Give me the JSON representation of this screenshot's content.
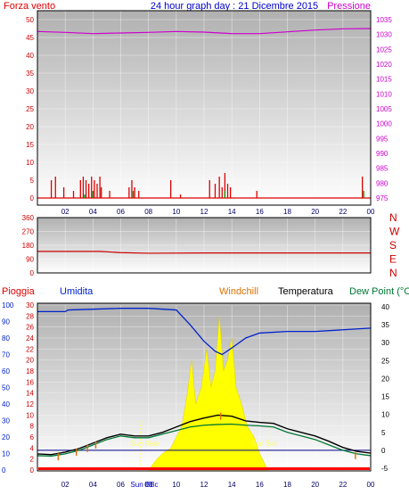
{
  "header": {
    "left": "Forza vento",
    "center": "24 hour graph day : 21 Dicembre 2015",
    "right": "Pressione"
  },
  "panel3_header": {
    "pioggia": "Pioggia",
    "umidita": "Umidita",
    "windchill": "Windchill",
    "temperatura": "Temperatura",
    "dewpoint": "Dew Point (°C"
  },
  "annotations": {
    "sun_rise": "Sun Rise",
    "sun_set": "Sun Set",
    "sun_label": "Sun BBc"
  },
  "colors": {
    "wind": "#dd0000",
    "pressure": "#cc00cc",
    "direction": "#cc0000",
    "humidity": "#0022cc",
    "temperature": "#000000",
    "dewpoint": "#007733",
    "windchill": "#e07000",
    "sun": "#ffff00",
    "rain": "#ff0000",
    "title": "#0000cc"
  },
  "chart_data": [
    {
      "type": "bar",
      "id": "wind_pressure",
      "x_ticks": [
        "02",
        "04",
        "06",
        "08",
        "10",
        "12",
        "14",
        "16",
        "18",
        "20",
        "22",
        "00"
      ],
      "y_left_ticks": [
        0,
        5,
        10,
        15,
        20,
        25,
        30,
        35,
        40,
        45,
        50
      ],
      "ylim_left": [
        0,
        50
      ],
      "y_right_ticks": [
        975,
        980,
        985,
        990,
        995,
        1000,
        1005,
        1010,
        1015,
        1020,
        1025,
        1030,
        1035
      ],
      "ylim_right": [
        975,
        1035
      ],
      "wind_gusts": [
        {
          "h": 1.0,
          "v": 5
        },
        {
          "h": 1.3,
          "v": 6
        },
        {
          "h": 1.9,
          "v": 3
        },
        {
          "h": 2.6,
          "v": 2
        },
        {
          "h": 3.1,
          "v": 5
        },
        {
          "h": 3.3,
          "v": 6
        },
        {
          "h": 3.5,
          "v": 5
        },
        {
          "h": 3.7,
          "v": 4
        },
        {
          "h": 3.9,
          "v": 6
        },
        {
          "h": 4.1,
          "v": 5
        },
        {
          "h": 4.3,
          "v": 4
        },
        {
          "h": 4.5,
          "v": 6
        },
        {
          "h": 4.6,
          "v": 3
        },
        {
          "h": 5.2,
          "v": 2
        },
        {
          "h": 6.6,
          "v": 3
        },
        {
          "h": 6.8,
          "v": 5
        },
        {
          "h": 7.0,
          "v": 3
        },
        {
          "h": 7.3,
          "v": 2
        },
        {
          "h": 9.6,
          "v": 5
        },
        {
          "h": 10.3,
          "v": 1
        },
        {
          "h": 12.4,
          "v": 5
        },
        {
          "h": 12.8,
          "v": 4
        },
        {
          "h": 13.1,
          "v": 6
        },
        {
          "h": 13.3,
          "v": 3
        },
        {
          "h": 13.5,
          "v": 7
        },
        {
          "h": 13.7,
          "v": 4
        },
        {
          "h": 13.9,
          "v": 3
        },
        {
          "h": 15.8,
          "v": 2
        },
        {
          "h": 23.4,
          "v": 6
        }
      ],
      "wind_avg": [
        {
          "h": 3.4,
          "v": 1
        },
        {
          "h": 4.0,
          "v": 2
        },
        {
          "h": 6.9,
          "v": 2
        },
        {
          "h": 13.5,
          "v": 2
        },
        {
          "h": 23.5,
          "v": 2
        }
      ],
      "pressure": [
        {
          "h": 0,
          "v": 1031
        },
        {
          "h": 2,
          "v": 1030.7
        },
        {
          "h": 4,
          "v": 1030.3
        },
        {
          "h": 6,
          "v": 1030.5
        },
        {
          "h": 8,
          "v": 1030.7
        },
        {
          "h": 10,
          "v": 1031
        },
        {
          "h": 12,
          "v": 1030.8
        },
        {
          "h": 14,
          "v": 1030.3
        },
        {
          "h": 16,
          "v": 1030.3
        },
        {
          "h": 18,
          "v": 1030.9
        },
        {
          "h": 20,
          "v": 1031.5
        },
        {
          "h": 22,
          "v": 1031.9
        },
        {
          "h": 24,
          "v": 1032
        }
      ]
    },
    {
      "type": "line",
      "id": "wind_direction",
      "y_ticks": [
        0,
        90,
        180,
        270,
        360
      ],
      "ylim": [
        0,
        360
      ],
      "compass": [
        "N",
        "W",
        "S",
        "E",
        "N"
      ],
      "direction": [
        {
          "h": 0,
          "v": 140
        },
        {
          "h": 4.5,
          "v": 140
        },
        {
          "h": 6,
          "v": 132
        },
        {
          "h": 8,
          "v": 128
        },
        {
          "h": 12,
          "v": 130
        },
        {
          "h": 16,
          "v": 130
        },
        {
          "h": 24,
          "v": 130
        }
      ]
    },
    {
      "type": "line",
      "id": "temp_humidity",
      "x_ticks": [
        "02",
        "04",
        "06",
        "08",
        "10",
        "12",
        "14",
        "16",
        "18",
        "20",
        "22",
        "00"
      ],
      "y_hum_ticks": [
        0,
        10,
        20,
        30,
        40,
        50,
        60,
        70,
        80,
        90,
        100
      ],
      "ylim_hum": [
        0,
        100
      ],
      "y_rain_ticks": [
        0,
        2,
        4,
        6,
        8,
        10,
        12,
        14,
        16,
        18,
        20,
        22,
        24,
        26,
        28,
        30
      ],
      "ylim_rain": [
        0,
        30
      ],
      "y_temp_ticks": [
        -5,
        0,
        5,
        10,
        15,
        20,
        25,
        30,
        35,
        40
      ],
      "ylim_temp": [
        -5,
        40
      ],
      "humidity": [
        {
          "h": 0,
          "v": 96
        },
        {
          "h": 2,
          "v": 96
        },
        {
          "h": 2.2,
          "v": 97
        },
        {
          "h": 6,
          "v": 98
        },
        {
          "h": 8,
          "v": 98
        },
        {
          "h": 10,
          "v": 97
        },
        {
          "h": 11,
          "v": 88
        },
        {
          "h": 12,
          "v": 78
        },
        {
          "h": 12.8,
          "v": 72
        },
        {
          "h": 13.3,
          "v": 70
        },
        {
          "h": 14,
          "v": 74
        },
        {
          "h": 15,
          "v": 80
        },
        {
          "h": 16,
          "v": 83
        },
        {
          "h": 18,
          "v": 84
        },
        {
          "h": 20,
          "v": 84
        },
        {
          "h": 22,
          "v": 85
        },
        {
          "h": 24,
          "v": 86
        }
      ],
      "temperature": [
        {
          "h": 0,
          "v": -1
        },
        {
          "h": 1,
          "v": -1.2
        },
        {
          "h": 2,
          "v": -0.5
        },
        {
          "h": 3,
          "v": 0.5
        },
        {
          "h": 4,
          "v": 2
        },
        {
          "h": 5,
          "v": 3.5
        },
        {
          "h": 6,
          "v": 4.5
        },
        {
          "h": 7,
          "v": 4
        },
        {
          "h": 8,
          "v": 4
        },
        {
          "h": 9,
          "v": 5
        },
        {
          "h": 10,
          "v": 6.5
        },
        {
          "h": 11,
          "v": 8
        },
        {
          "h": 12,
          "v": 9
        },
        {
          "h": 13,
          "v": 9.8
        },
        {
          "h": 14,
          "v": 9.5
        },
        {
          "h": 15,
          "v": 8.2
        },
        {
          "h": 16,
          "v": 7.8
        },
        {
          "h": 17,
          "v": 7.5
        },
        {
          "h": 18,
          "v": 6
        },
        {
          "h": 19,
          "v": 5
        },
        {
          "h": 20,
          "v": 4
        },
        {
          "h": 21,
          "v": 2.5
        },
        {
          "h": 22,
          "v": 0.8
        },
        {
          "h": 23,
          "v": -0.3
        },
        {
          "h": 24,
          "v": -0.8
        }
      ],
      "dewpoint": [
        {
          "h": 0,
          "v": -1.5
        },
        {
          "h": 1,
          "v": -1.6
        },
        {
          "h": 2,
          "v": -1
        },
        {
          "h": 3,
          "v": 0
        },
        {
          "h": 4,
          "v": 1.5
        },
        {
          "h": 5,
          "v": 3
        },
        {
          "h": 6,
          "v": 4
        },
        {
          "h": 7,
          "v": 3.5
        },
        {
          "h": 8,
          "v": 3.5
        },
        {
          "h": 9,
          "v": 4.5
        },
        {
          "h": 10,
          "v": 5.5
        },
        {
          "h": 11,
          "v": 6.5
        },
        {
          "h": 12,
          "v": 7
        },
        {
          "h": 13,
          "v": 7.2
        },
        {
          "h": 14,
          "v": 7.3
        },
        {
          "h": 15,
          "v": 7
        },
        {
          "h": 16,
          "v": 6.8
        },
        {
          "h": 17,
          "v": 6.5
        },
        {
          "h": 18,
          "v": 5
        },
        {
          "h": 19,
          "v": 4
        },
        {
          "h": 20,
          "v": 3
        },
        {
          "h": 21,
          "v": 1.5
        },
        {
          "h": 22,
          "v": 0
        },
        {
          "h": 23,
          "v": -1
        },
        {
          "h": 24,
          "v": -1.5
        }
      ],
      "windchill": [
        {
          "h": 1.5,
          "v": -1.8
        },
        {
          "h": 2.8,
          "v": -0.5
        },
        {
          "h": 3.6,
          "v": 0.5
        },
        {
          "h": 4.2,
          "v": 1.5
        },
        {
          "h": 13.2,
          "v": 9.5
        },
        {
          "h": 22.9,
          "v": -1.5
        }
      ],
      "sun_rise_h": 7.4,
      "sun_set_h": 16.6,
      "solar": [
        {
          "h": 8,
          "v": 0
        },
        {
          "h": 8.6,
          "v": 2
        },
        {
          "h": 9,
          "v": 3
        },
        {
          "h": 9.6,
          "v": 4
        },
        {
          "h": 10,
          "v": 6
        },
        {
          "h": 10.4,
          "v": 8
        },
        {
          "h": 10.8,
          "v": 14
        },
        {
          "h": 11.1,
          "v": 20
        },
        {
          "h": 11.4,
          "v": 12
        },
        {
          "h": 11.8,
          "v": 15
        },
        {
          "h": 12.2,
          "v": 22
        },
        {
          "h": 12.5,
          "v": 15
        },
        {
          "h": 12.8,
          "v": 18
        },
        {
          "h": 13.1,
          "v": 28
        },
        {
          "h": 13.4,
          "v": 18
        },
        {
          "h": 13.7,
          "v": 20
        },
        {
          "h": 14.0,
          "v": 24
        },
        {
          "h": 14.3,
          "v": 15
        },
        {
          "h": 14.7,
          "v": 12
        },
        {
          "h": 15.1,
          "v": 8
        },
        {
          "h": 15.6,
          "v": 6
        },
        {
          "h": 16.0,
          "v": 3
        },
        {
          "h": 16.4,
          "v": 1
        },
        {
          "h": 16.6,
          "v": 0
        }
      ]
    }
  ]
}
